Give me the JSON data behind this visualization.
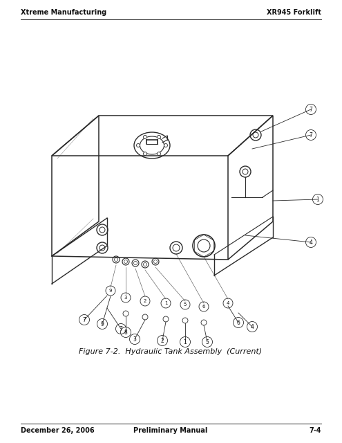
{
  "header_left": "Xtreme Manufacturing",
  "header_right": "XR945 Forklift",
  "footer_left": "December 26, 2006",
  "footer_center": "Preliminary Manual",
  "footer_right": "7-4",
  "figure_caption": "Figure 7-2.  Hydraulic Tank Assembly  (Current)",
  "bg_color": "#ffffff",
  "line_color": "#2a2a2a",
  "text_color": "#111111",
  "header_fontsize": 7.0,
  "footer_fontsize": 7.0,
  "caption_fontsize": 8.0
}
